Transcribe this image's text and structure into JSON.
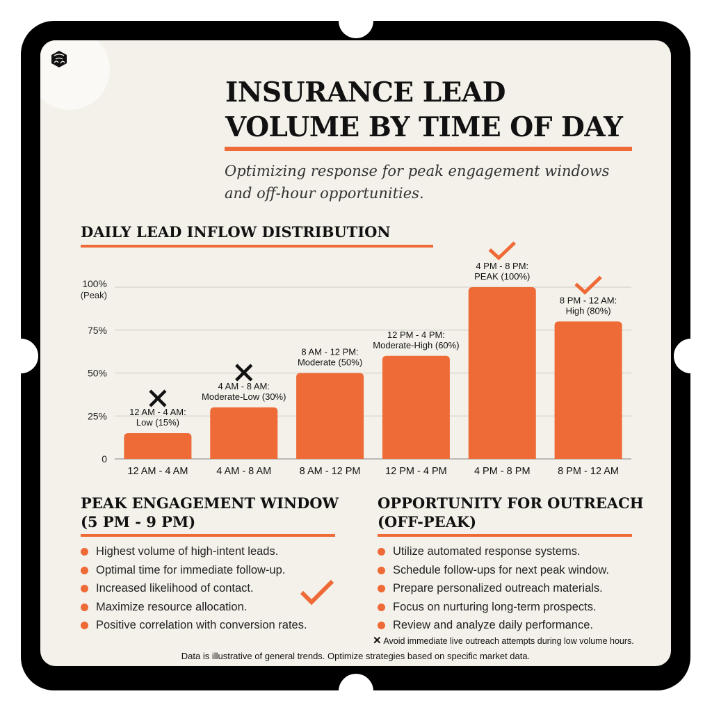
{
  "header": {
    "title_line1": "INSURANCE LEAD",
    "title_line2": "VOLUME BY TIME OF DAY",
    "subtitle_line1": "Optimizing response for peak engagement windows",
    "subtitle_line2": "and off-hour opportunities.",
    "logo_icon": "cube-logo-icon"
  },
  "colors": {
    "accent": "#ee6a36",
    "frame": "#000000",
    "background": "#f4f1ea"
  },
  "chart_data": {
    "type": "bar",
    "title": "DAILY LEAD INFLOW DISTRIBUTION",
    "categories": [
      "12 AM - 4 AM",
      "4 AM - 8 AM",
      "8 AM - 12 PM",
      "12 PM - 4 PM",
      "4 PM - 8 PM",
      "8 PM - 12 AM"
    ],
    "values": [
      15,
      30,
      50,
      60,
      100,
      80
    ],
    "data_labels": [
      [
        "12 AM - 4 AM:",
        "Low (15%)"
      ],
      [
        "4 AM - 8 AM:",
        "Moderate-Low (30%)"
      ],
      [
        "8 AM - 12 PM:",
        "Moderate (50%)"
      ],
      [
        "12 PM - 4 PM:",
        "Moderate-High (60%)"
      ],
      [
        "4 PM - 8 PM:",
        "PEAK (100%)"
      ],
      [
        "8 PM - 12 AM:",
        "High (80%)"
      ]
    ],
    "markers": [
      "cross",
      "cross",
      "none",
      "none",
      "check",
      "check"
    ],
    "yticks": [
      {
        "value": 0,
        "label": "0"
      },
      {
        "value": 25,
        "label": "25%"
      },
      {
        "value": 50,
        "label": "50%"
      },
      {
        "value": 75,
        "label": "75%"
      },
      {
        "value": 100,
        "label": "100%",
        "sub": "(Peak)"
      }
    ],
    "ylim": [
      0,
      100
    ],
    "grid": true,
    "color": "#ee6a36"
  },
  "peak": {
    "title_line1": "PEAK ENGAGEMENT WINDOW",
    "title_line2": "(5 PM - 9 PM)",
    "items": [
      "Highest volume of high-intent leads.",
      "Optimal time for immediate follow-up.",
      "Increased likelihood of contact.",
      "Maximize resource allocation.",
      "Positive correlation with conversion rates."
    ]
  },
  "offpeak": {
    "title_line1": "OPPORTUNITY FOR OUTREACH",
    "title_line2": "(OFF-PEAK)",
    "items": [
      "Utilize automated response systems.",
      "Schedule follow-ups for next peak window.",
      "Prepare personalized outreach materials.",
      "Focus on nurturing long-term prospects.",
      "Review and analyze daily performance."
    ],
    "note": "Avoid immediate live outreach attempts during low volume hours."
  },
  "footer": "Data is illustrative of general trends. Optimize strategies based on specific market data."
}
